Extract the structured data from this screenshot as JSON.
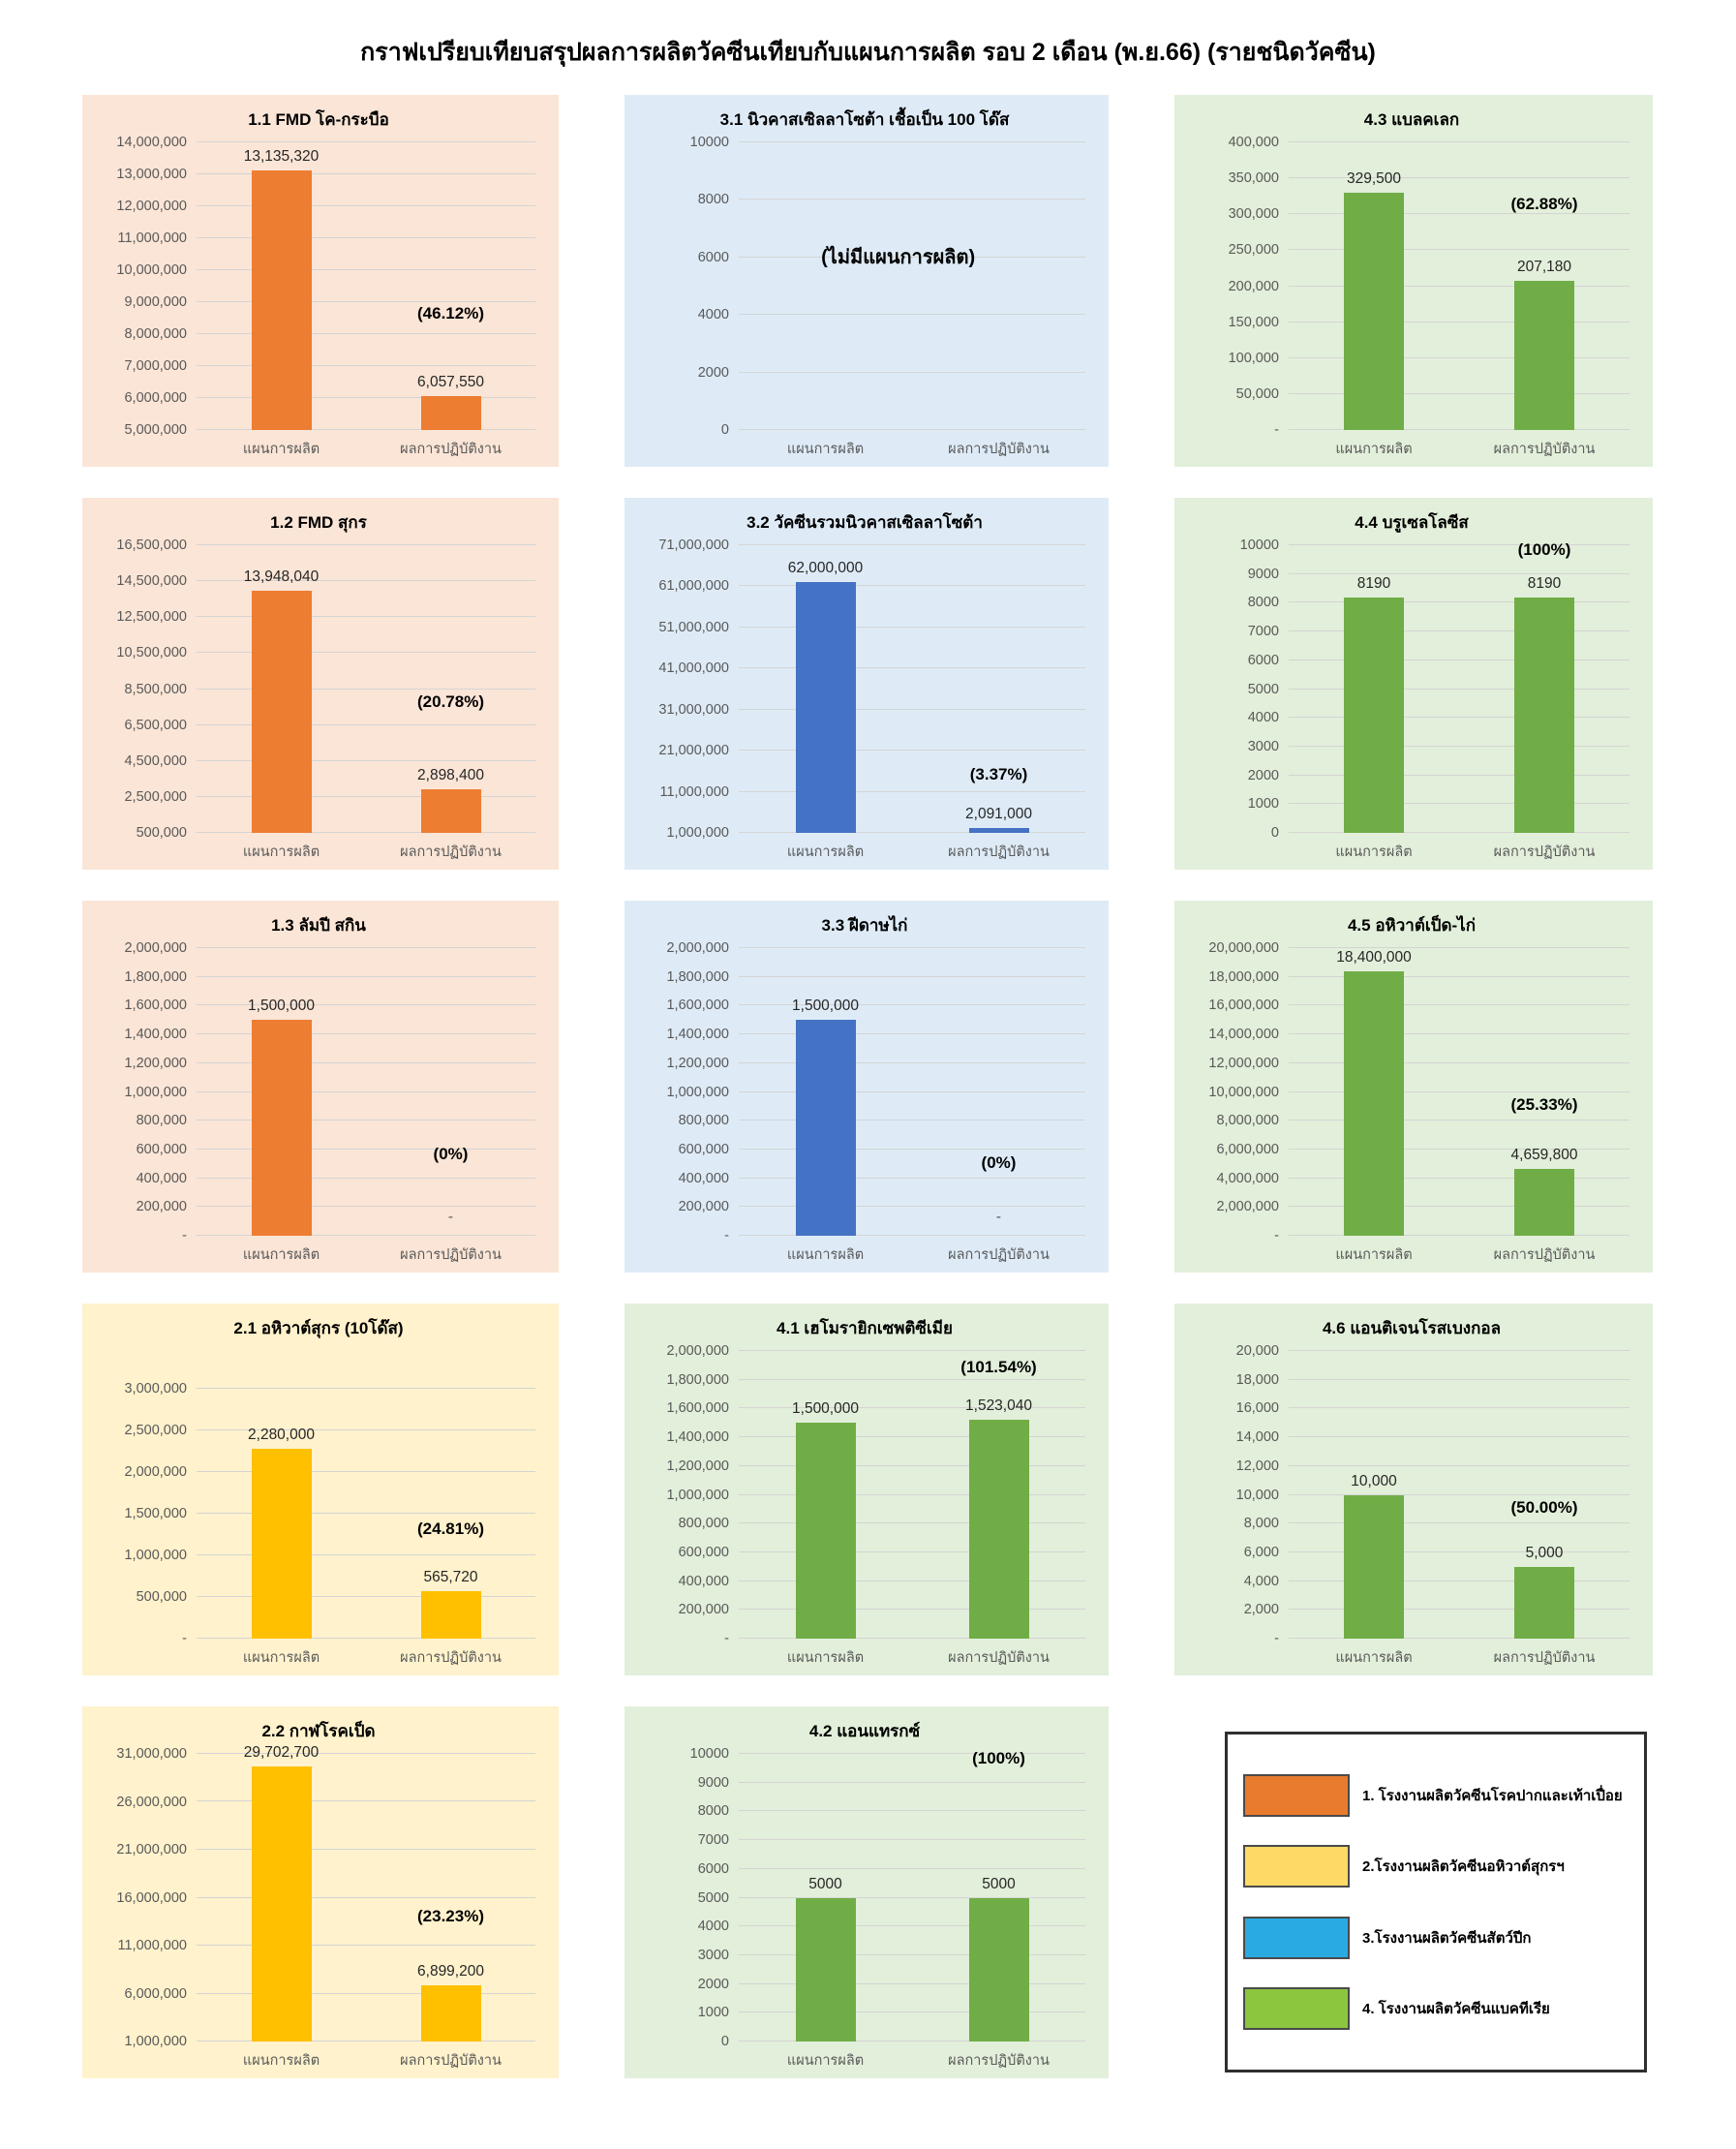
{
  "title": "กราฟเปรียบเทียบสรุปผลการผลิตวัคซีนเทียบกับแผนการผลิต รอบ 2 เดือน (พ.ย.66) (รายชนิดวัคซีน)",
  "chart_data": {
    "type": "bar",
    "title": "กราฟเปรียบเทียบสรุปผลการผลิตวัคซีนเทียบกับแผนการผลิต รอบ 2 เดือน (พ.ย.66) (รายชนิดวัคซีน)",
    "categories": [
      "แผนการผลิต",
      "ผลการปฏิบัติงาน"
    ],
    "themes": {
      "orange": {
        "bar": "#ED7D31",
        "bg": "#FBE5D6"
      },
      "yellow": {
        "bar": "#FFC000",
        "bg": "#FFF2CC"
      },
      "blue": {
        "bar": "#4472C4",
        "bg": "#DEEBF7"
      },
      "green": {
        "bar": "#70AD47",
        "bg": "#E2EFDA"
      }
    },
    "charts": [
      {
        "id": "1.1",
        "title": "1.1 FMD โค-กระบือ",
        "theme": "orange",
        "axis": {
          "min": 5000000,
          "max": 14000000
        },
        "ticks": [
          "14,000,000",
          "13,000,000",
          "12,000,000",
          "11,000,000",
          "10,000,000",
          "9,000,000",
          "8,000,000",
          "7,000,000",
          "6,000,000",
          "5,000,000"
        ],
        "plan": 13135320,
        "plan_label": "13,135,320",
        "actual": 6057550,
        "actual_label": "6,057,550",
        "pct_label": "(46.12%)",
        "pct_frac": 0.37
      },
      {
        "id": "3.1",
        "title": "3.1 นิวคาสเซิลลาโซต้า เชื้อเป็น 100 โด๊ส",
        "theme": "blue",
        "axis": {
          "min": 0,
          "max": 10000
        },
        "ticks": [
          "10000",
          "8000",
          "6000",
          "4000",
          "2000",
          "0"
        ],
        "plan": null,
        "plan_label": null,
        "actual": null,
        "actual_label": null,
        "pct_label": null,
        "pct_frac": null,
        "note": "(ไม่มีแผนการผลิต)",
        "note_frac": 0.55
      },
      {
        "id": "4.3",
        "title": "4.3 แบลคเลก",
        "theme": "green",
        "axis": {
          "min": 0,
          "max": 400000
        },
        "ticks": [
          "400,000",
          "350,000",
          "300,000",
          "250,000",
          "200,000",
          "150,000",
          "100,000",
          "50,000",
          "-"
        ],
        "plan": 329500,
        "plan_label": "329,500",
        "actual": 207180,
        "actual_label": "207,180",
        "pct_label": "(62.88%)",
        "pct_frac": 0.75
      },
      {
        "id": "1.2",
        "title": "1.2 FMD สุกร",
        "theme": "orange",
        "axis": {
          "min": 500000,
          "max": 16500000
        },
        "ticks": [
          "16,500,000",
          "14,500,000",
          "12,500,000",
          "10,500,000",
          "8,500,000",
          "6,500,000",
          "4,500,000",
          "2,500,000",
          "500,000"
        ],
        "plan": 13948040,
        "plan_label": "13,948,040",
        "actual": 2898400,
        "actual_label": "2,898,400",
        "pct_label": "(20.78%)",
        "pct_frac": 0.42
      },
      {
        "id": "3.2",
        "title": "3.2 วัคซีนรวมนิวคาสเซิลลาโซต้า",
        "theme": "blue",
        "axis": {
          "min": 1000000,
          "max": 71000000
        },
        "ticks": [
          "71,000,000",
          "61,000,000",
          "51,000,000",
          "41,000,000",
          "31,000,000",
          "21,000,000",
          "11,000,000",
          "1,000,000"
        ],
        "plan": 62000000,
        "plan_label": "62,000,000",
        "actual": 2091000,
        "actual_label": "2,091,000",
        "pct_label": "(3.37%)",
        "pct_frac": 0.17
      },
      {
        "id": "4.4",
        "title": "4.4 บรูเซลโลซีส",
        "theme": "green",
        "axis": {
          "min": 0,
          "max": 10000
        },
        "ticks": [
          "10000",
          "9000",
          "8000",
          "7000",
          "6000",
          "5000",
          "4000",
          "3000",
          "2000",
          "1000",
          "0"
        ],
        "plan": 8190,
        "plan_label": "8190",
        "actual": 8190,
        "actual_label": "8190",
        "pct_label": "(100%)",
        "pct_frac": 0.95
      },
      {
        "id": "1.3",
        "title": "1.3 ลัมปี สกิน",
        "theme": "orange",
        "axis": {
          "min": 0,
          "max": 2000000
        },
        "ticks": [
          "2,000,000",
          "1,800,000",
          "1,600,000",
          "1,400,000",
          "1,200,000",
          "1,000,000",
          "800,000",
          "600,000",
          "400,000",
          "200,000",
          "-"
        ],
        "plan": 1500000,
        "plan_label": "1,500,000",
        "actual": 0,
        "actual_label": "-",
        "pct_label": "(0%)",
        "pct_frac": 0.25
      },
      {
        "id": "3.3",
        "title": "3.3 ฝีดาษไก่",
        "theme": "blue",
        "axis": {
          "min": 0,
          "max": 2000000
        },
        "ticks": [
          "2,000,000",
          "1,800,000",
          "1,600,000",
          "1,400,000",
          "1,200,000",
          "1,000,000",
          "800,000",
          "600,000",
          "400,000",
          "200,000",
          "-"
        ],
        "plan": 1500000,
        "plan_label": "1,500,000",
        "actual": 0,
        "actual_label": "-",
        "pct_label": "(0%)",
        "pct_frac": 0.22
      },
      {
        "id": "4.5",
        "title": "4.5 อหิวาต์เป็ด-ไก่",
        "theme": "green",
        "axis": {
          "min": 0,
          "max": 20000000
        },
        "ticks": [
          "20,000,000",
          "18,000,000",
          "16,000,000",
          "14,000,000",
          "12,000,000",
          "10,000,000",
          "8,000,000",
          "6,000,000",
          "4,000,000",
          "2,000,000",
          "-"
        ],
        "plan": 18400000,
        "plan_label": "18,400,000",
        "actual": 4659800,
        "actual_label": "4,659,800",
        "pct_label": "(25.33%)",
        "pct_frac": 0.42
      },
      {
        "id": "2.1",
        "title": "2.1 อหิวาต์สุกร (10โด๊ส)",
        "theme": "yellow",
        "axis": {
          "min": 0,
          "max": 3000000,
          "top_pad": 0.13
        },
        "ticks": [
          "3,000,000",
          "2,500,000",
          "2,000,000",
          "1,500,000",
          "1,000,000",
          "500,000",
          "-"
        ],
        "plan": 2280000,
        "plan_label": "2,280,000",
        "actual": 565720,
        "actual_label": "565,720",
        "pct_label": "(24.81%)",
        "pct_frac": 0.4
      },
      {
        "id": "4.1",
        "title": "4.1 เฮโมรายิกเซพติซีเมีย",
        "theme": "green",
        "axis": {
          "min": 0,
          "max": 2000000
        },
        "ticks": [
          "2,000,000",
          "1,800,000",
          "1,600,000",
          "1,400,000",
          "1,200,000",
          "1,000,000",
          "800,000",
          "600,000",
          "400,000",
          "200,000",
          "-"
        ],
        "plan": 1500000,
        "plan_label": "1,500,000",
        "actual": 1523040,
        "actual_label": "1,523,040",
        "pct_label": "(101.54%)",
        "pct_frac": 0.91
      },
      {
        "id": "4.6",
        "title": "4.6 แอนติเจนโรสเบงกอล",
        "theme": "green",
        "axis": {
          "min": 0,
          "max": 20000
        },
        "ticks": [
          "20,000",
          "18,000",
          "16,000",
          "14,000",
          "12,000",
          "10,000",
          "8,000",
          "6,000",
          "4,000",
          "2,000",
          "-"
        ],
        "plan": 10000,
        "plan_label": "10,000",
        "actual": 5000,
        "actual_label": "5,000",
        "pct_label": "(50.00%)",
        "pct_frac": 0.42
      },
      {
        "id": "2.2",
        "title": "2.2 กาฬโรคเป็ด",
        "theme": "yellow",
        "axis": {
          "min": 1000000,
          "max": 31000000
        },
        "ticks": [
          "31,000,000",
          "26,000,000",
          "21,000,000",
          "16,000,000",
          "11,000,000",
          "6,000,000",
          "1,000,000"
        ],
        "plan": 29702700,
        "plan_label": "29,702,700",
        "actual": 6899200,
        "actual_label": "6,899,200",
        "pct_label": "(23.23%)",
        "pct_frac": 0.4
      },
      {
        "id": "4.2",
        "title": "4.2 แอนแทรกซ์",
        "theme": "green",
        "axis": {
          "min": 0,
          "max": 10000
        },
        "ticks": [
          "10000",
          "9000",
          "8000",
          "7000",
          "6000",
          "5000",
          "4000",
          "3000",
          "2000",
          "1000",
          "0"
        ],
        "plan": 5000,
        "plan_label": "5000",
        "actual": 5000,
        "actual_label": "5000",
        "pct_label": "(100%)",
        "pct_frac": 0.95
      }
    ],
    "legend": {
      "items": [
        {
          "label": "1. โรงงานผลิตวัคซีนโรคปากและเท้าเปื่อย",
          "color": "#E87B2E"
        },
        {
          "label": "2.โรงงานผลิตวัคซีนอหิวาต์สุกรฯ",
          "color": "#FFD966"
        },
        {
          "label": "3.โรงงานผลิตวัคซีนสัตว์ปีก",
          "color": "#29ABE2"
        },
        {
          "label": "4. โรงงานผลิตวัคซีนแบคทีเรีย",
          "color": "#8CC63F"
        }
      ]
    }
  }
}
